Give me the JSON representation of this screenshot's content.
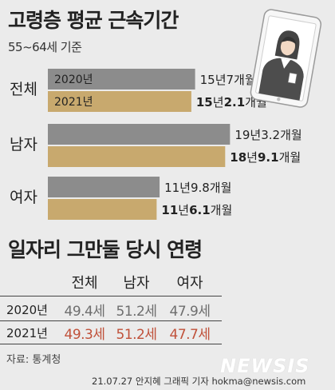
{
  "header": {
    "title": "고령층 평균 근속기간",
    "subtitle": "55~64세 기준"
  },
  "chart_data": {
    "type": "bar",
    "orientation": "horizontal",
    "categories": [
      "전체",
      "남자",
      "여자"
    ],
    "unit": "years",
    "series": [
      {
        "name": "2020년",
        "color": "#8c8c8c",
        "values": [
          15.58,
          19.27,
          11.82
        ],
        "labels": [
          "15년7개월",
          "19년3.2개월",
          "11년9.8개월"
        ]
      },
      {
        "name": "2021년",
        "color": "#c8a96e",
        "values": [
          15.18,
          18.76,
          11.51
        ],
        "labels": [
          "15년2.1개월",
          "18년9.1개월",
          "11년6.1개월"
        ]
      }
    ],
    "xlim": [
      0,
      20
    ]
  },
  "table": {
    "title": "일자리 그만둘 당시 연령",
    "columns": [
      "전체",
      "남자",
      "여자"
    ],
    "rows": [
      {
        "year": "2020년",
        "cells": [
          "49.4세",
          "51.2세",
          "47.9세"
        ]
      },
      {
        "year": "2021년",
        "cells": [
          "49.3세",
          "51.2세",
          "47.7세"
        ]
      }
    ]
  },
  "footer": {
    "source": "자료: 통계청",
    "credit": "21.07.27 안지혜 그래픽 기자 hokma@newsis.com",
    "logo": "NEWSIS"
  },
  "icons": {
    "illustration": "tablet-woman-icon"
  }
}
